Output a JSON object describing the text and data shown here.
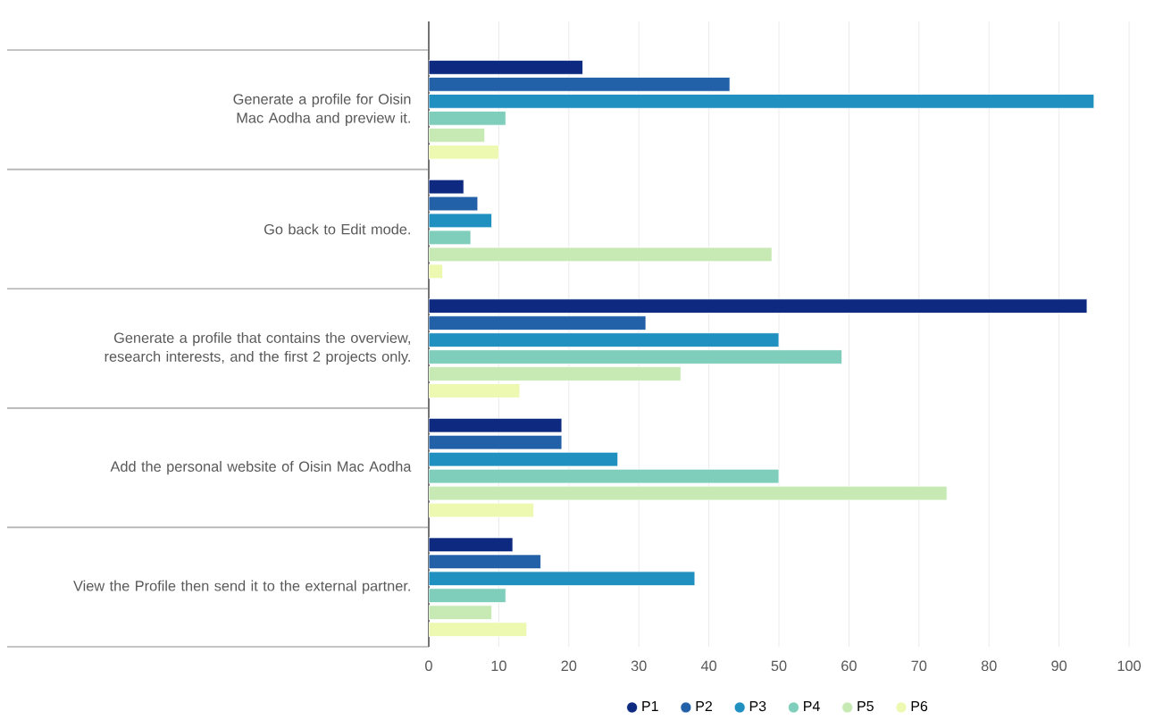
{
  "chart_data": {
    "type": "bar",
    "orientation": "horizontal",
    "categories": [
      "Generate a profile for Oisin Mac Aodha and preview it.",
      "Go back to Edit mode.",
      "Generate a profile that contains the overview, research interests, and the first 2 projects only.",
      "Add the personal website of Oisin Mac Aodha",
      "View the Profile then send it to the external partner."
    ],
    "series": [
      {
        "name": "P1",
        "color": "#0d2a80",
        "values": [
          22,
          5,
          94,
          19,
          12
        ]
      },
      {
        "name": "P2",
        "color": "#2260a8",
        "values": [
          43,
          7,
          31,
          19,
          16
        ]
      },
      {
        "name": "P3",
        "color": "#1f90c0",
        "values": [
          95,
          9,
          50,
          27,
          38
        ]
      },
      {
        "name": "P4",
        "color": "#7fcdbb",
        "values": [
          11,
          6,
          59,
          50,
          11
        ]
      },
      {
        "name": "P5",
        "color": "#c7e9b4",
        "values": [
          8,
          49,
          36,
          74,
          9
        ]
      },
      {
        "name": "P6",
        "color": "#edf8b1",
        "values": [
          10,
          2,
          13,
          15,
          14
        ]
      }
    ],
    "xlim": [
      0,
      100
    ],
    "xticks": [
      0,
      10,
      20,
      30,
      40,
      50,
      60,
      70,
      80,
      90,
      100
    ],
    "grid": "x",
    "legend": "bottom",
    "marker": "circle"
  }
}
